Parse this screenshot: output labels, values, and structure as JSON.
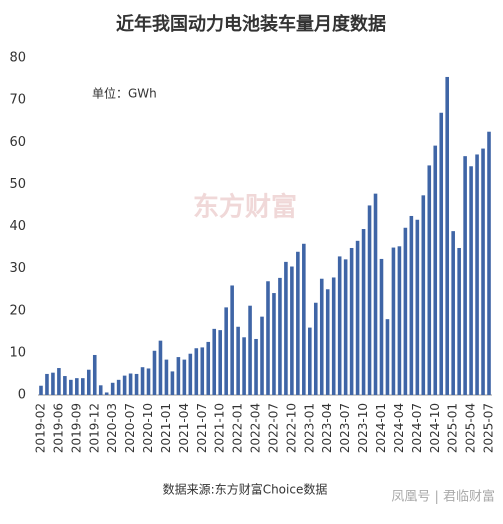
{
  "chart_data": {
    "type": "bar",
    "title": "近年我国动力电池装车量月度数据",
    "unit_label": "单位：GWh",
    "watermark": "东方财富",
    "source": "数据来源:东方财富Choice数据",
    "footer": "凤凰号 | 君临财富",
    "color": "#3f65a6",
    "categories": [
      "2019-02",
      null,
      null,
      "2019-06",
      null,
      null,
      "2019-09",
      null,
      null,
      "2019-12",
      null,
      null,
      "2020-03",
      null,
      null,
      "2020-07",
      null,
      null,
      "2020-10",
      null,
      null,
      "2021-01",
      null,
      null,
      "2021-04",
      null,
      null,
      "2021-07",
      null,
      null,
      "2021-10",
      null,
      null,
      "2022-01",
      null,
      null,
      "2022-04",
      null,
      null,
      "2022-07",
      null,
      null,
      "2022-10",
      null,
      null,
      "2023-01",
      null,
      null,
      "2023-04",
      null,
      null,
      "2023-07",
      null,
      null,
      "2023-10",
      null,
      null,
      "2024-01",
      null,
      null,
      "2024-04",
      null,
      null,
      "2024-07",
      null,
      null,
      "2024-10",
      null,
      null,
      "2025-01",
      null,
      null,
      "2025-04",
      null,
      null,
      "2025-07"
    ],
    "values": [
      2.2,
      5,
      5.3,
      6.4,
      4.5,
      3.6,
      4,
      4,
      6,
      9.5,
      2.3,
      0.6,
      2.9,
      3.6,
      4.6,
      5.1,
      5,
      6.6,
      6.3,
      10.5,
      12.9,
      8.4,
      5.6,
      9,
      8.4,
      9.8,
      11.1,
      11.3,
      12.6,
      15.7,
      15.4,
      20.8,
      26,
      16.2,
      13.7,
      21.2,
      13.3,
      18.6,
      27,
      24.2,
      27.8,
      31.6,
      30.5,
      34,
      35.9,
      16,
      21.9,
      27.6,
      25.1,
      27.9,
      32.9,
      32.2,
      34.9,
      36.6,
      39.4,
      45,
      47.8,
      32.3,
      18,
      35,
      35.3,
      39.7,
      42.5,
      41.6,
      47.4,
      54.5,
      59.2,
      67,
      75.5,
      38.9,
      34.9,
      56.7,
      54.3,
      57.1,
      58.5,
      62.5
    ],
    "ylim": [
      0,
      80
    ],
    "yticks": [
      0,
      10,
      20,
      30,
      40,
      50,
      60,
      70,
      80
    ],
    "grid": false
  }
}
